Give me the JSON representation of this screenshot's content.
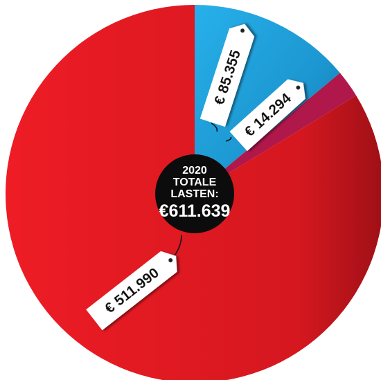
{
  "chart_data": {
    "type": "pie",
    "center_label": {
      "year": "2020",
      "line1": "TOTALE",
      "line2": "LASTEN:",
      "total": "€611.639"
    },
    "slices": [
      {
        "value": 85355,
        "label": "€ 85.355",
        "color": "#1fa3dd"
      },
      {
        "value": 14294,
        "label": "€ 14.294",
        "color": "#b0174a"
      },
      {
        "value": 511990,
        "label": "€ 511.990",
        "color": "#ee1c25"
      }
    ]
  }
}
